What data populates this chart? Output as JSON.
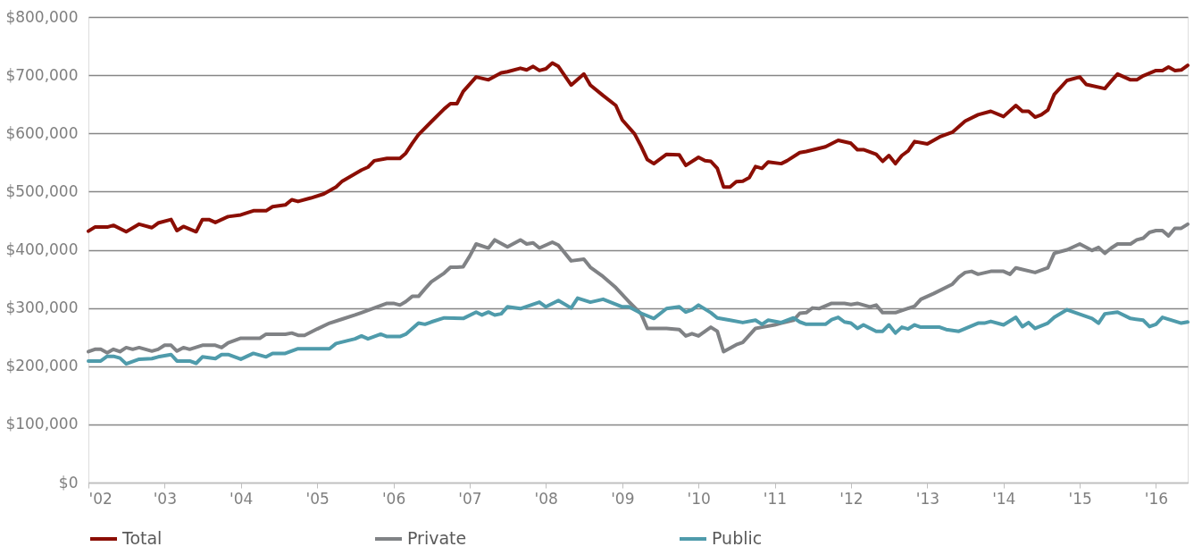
{
  "chart_data": {
    "type": "line",
    "legend": "bottom",
    "grid": "y",
    "marker": "none",
    "line_style": "solid",
    "xlim": [
      "2002-01",
      "2016-06"
    ],
    "xticks": [
      {
        "value": "2002-01",
        "label": "'02"
      },
      {
        "value": "2003-01",
        "label": "'03"
      },
      {
        "value": "2004-01",
        "label": "'04"
      },
      {
        "value": "2005-01",
        "label": "'05"
      },
      {
        "value": "2006-01",
        "label": "'06"
      },
      {
        "value": "2007-01",
        "label": "'07"
      },
      {
        "value": "2008-01",
        "label": "'08"
      },
      {
        "value": "2009-01",
        "label": "'09"
      },
      {
        "value": "2010-01",
        "label": "'10"
      },
      {
        "value": "2011-01",
        "label": "'11"
      },
      {
        "value": "2012-01",
        "label": "'12"
      },
      {
        "value": "2013-01",
        "label": "'13"
      },
      {
        "value": "2014-01",
        "label": "'14"
      },
      {
        "value": "2015-01",
        "label": "'15"
      },
      {
        "value": "2016-01",
        "label": "'16"
      }
    ],
    "ylim": [
      0,
      800000
    ],
    "yticks": [
      {
        "value": 0,
        "label": "$0"
      },
      {
        "value": 100000,
        "label": "$100,000"
      },
      {
        "value": 200000,
        "label": "$200,000"
      },
      {
        "value": 300000,
        "label": "$300,000"
      },
      {
        "value": 400000,
        "label": "$400,000"
      },
      {
        "value": 500000,
        "label": "$500,000"
      },
      {
        "value": 600000,
        "label": "$600,000"
      },
      {
        "value": 700000,
        "label": "$700,000"
      },
      {
        "value": 800000,
        "label": "$800,000"
      }
    ],
    "series": [
      {
        "name": "Total",
        "color": "#8b0e04",
        "x": [
          "2002-01",
          "2002-02",
          "2002-04",
          "2002-05",
          "2002-07",
          "2002-09",
          "2002-11",
          "2002-12",
          "2003-02",
          "2003-03",
          "2003-04",
          "2003-06",
          "2003-07",
          "2003-08",
          "2003-09",
          "2003-11",
          "2004-01",
          "2004-03",
          "2004-05",
          "2004-06",
          "2004-08",
          "2004-09",
          "2004-10",
          "2004-12",
          "2005-02",
          "2005-04",
          "2005-05",
          "2005-08",
          "2005-09",
          "2005-10",
          "2005-12",
          "2006-02",
          "2006-03",
          "2006-04",
          "2006-05",
          "2006-07",
          "2006-09",
          "2006-10",
          "2006-11",
          "2006-12",
          "2007-02",
          "2007-04",
          "2007-06",
          "2007-07",
          "2007-09",
          "2007-10",
          "2007-11",
          "2007-12",
          "2008-01",
          "2008-02",
          "2008-03",
          "2008-05",
          "2008-07",
          "2008-08",
          "2008-10",
          "2008-12",
          "2009-01",
          "2009-03",
          "2009-04",
          "2009-05",
          "2009-06",
          "2009-08",
          "2009-10",
          "2009-11",
          "2010-01",
          "2010-02",
          "2010-03",
          "2010-04",
          "2010-05",
          "2010-06",
          "2010-07",
          "2010-08",
          "2010-09",
          "2010-10",
          "2010-11",
          "2010-12",
          "2011-02",
          "2011-03",
          "2011-05",
          "2011-06",
          "2011-09",
          "2011-11",
          "2012-01",
          "2012-02",
          "2012-03",
          "2012-05",
          "2012-06",
          "2012-07",
          "2012-08",
          "2012-09",
          "2012-10",
          "2012-11",
          "2013-01",
          "2013-03",
          "2013-05",
          "2013-07",
          "2013-09",
          "2013-11",
          "2014-01",
          "2014-03",
          "2014-04",
          "2014-05",
          "2014-06",
          "2014-07",
          "2014-08",
          "2014-09",
          "2014-11",
          "2015-01",
          "2015-02",
          "2015-05",
          "2015-06",
          "2015-07",
          "2015-09",
          "2015-10",
          "2015-11",
          "2016-01",
          "2016-02",
          "2016-03",
          "2016-04",
          "2016-05",
          "2016-06"
        ],
        "values": [
          432000,
          439000,
          439000,
          442000,
          431000,
          444000,
          438000,
          446000,
          452000,
          433000,
          440000,
          431000,
          452000,
          452000,
          447000,
          457000,
          460000,
          467000,
          467000,
          474000,
          477000,
          486000,
          483000,
          489000,
          496000,
          508000,
          518000,
          537000,
          542000,
          553000,
          557000,
          557000,
          566000,
          583000,
          598000,
          620000,
          642000,
          651000,
          651000,
          672000,
          697000,
          692000,
          704000,
          706000,
          712000,
          709000,
          715000,
          708000,
          711000,
          721000,
          715000,
          683000,
          702000,
          683000,
          665000,
          648000,
          623000,
          599000,
          578000,
          555000,
          548000,
          564000,
          563000,
          545000,
          559000,
          553000,
          552000,
          540000,
          508000,
          508000,
          517000,
          518000,
          524000,
          543000,
          540000,
          551000,
          548000,
          553000,
          567000,
          569000,
          577000,
          588000,
          583000,
          572000,
          572000,
          564000,
          552000,
          562000,
          548000,
          562000,
          570000,
          586000,
          582000,
          594000,
          602000,
          621000,
          632000,
          638000,
          629000,
          648000,
          638000,
          638000,
          628000,
          632000,
          640000,
          667000,
          691000,
          697000,
          684000,
          677000,
          690000,
          702000,
          692000,
          692000,
          699000,
          708000,
          708000,
          714000,
          708000,
          709000,
          717000
        ]
      },
      {
        "name": "Private",
        "color": "#808285",
        "x": [
          "2002-01",
          "2002-02",
          "2002-03",
          "2002-04",
          "2002-05",
          "2002-06",
          "2002-07",
          "2002-08",
          "2002-09",
          "2002-11",
          "2002-12",
          "2003-01",
          "2003-02",
          "2003-03",
          "2003-04",
          "2003-05",
          "2003-07",
          "2003-09",
          "2003-10",
          "2003-11",
          "2004-01",
          "2004-04",
          "2004-05",
          "2004-08",
          "2004-09",
          "2004-10",
          "2004-11",
          "2005-01",
          "2005-03",
          "2005-05",
          "2005-07",
          "2005-08",
          "2005-10",
          "2005-12",
          "2006-01",
          "2006-02",
          "2006-03",
          "2006-04",
          "2006-05",
          "2006-06",
          "2006-07",
          "2006-09",
          "2006-10",
          "2006-11",
          "2006-12",
          "2007-01",
          "2007-02",
          "2007-04",
          "2007-05",
          "2007-07",
          "2007-09",
          "2007-10",
          "2007-11",
          "2007-12",
          "2008-02",
          "2008-03",
          "2008-05",
          "2008-07",
          "2008-08",
          "2008-10",
          "2008-12",
          "2009-02",
          "2009-04",
          "2009-05",
          "2009-06",
          "2009-08",
          "2009-10",
          "2009-11",
          "2009-12",
          "2010-01",
          "2010-03",
          "2010-04",
          "2010-05",
          "2010-07",
          "2010-08",
          "2010-10",
          "2010-11",
          "2011-01",
          "2011-02",
          "2011-04",
          "2011-05",
          "2011-06",
          "2011-07",
          "2011-08",
          "2011-10",
          "2011-12",
          "2012-01",
          "2012-02",
          "2012-04",
          "2012-05",
          "2012-06",
          "2012-08",
          "2012-11",
          "2012-12",
          "2013-02",
          "2013-05",
          "2013-06",
          "2013-07",
          "2013-08",
          "2013-09",
          "2013-11",
          "2014-01",
          "2014-02",
          "2014-03",
          "2014-06",
          "2014-08",
          "2014-09",
          "2014-11",
          "2015-01",
          "2015-03",
          "2015-04",
          "2015-05",
          "2015-06",
          "2015-07",
          "2015-09",
          "2015-10",
          "2015-11",
          "2015-12",
          "2016-01",
          "2016-02",
          "2016-03",
          "2016-04",
          "2016-05",
          "2016-06"
        ],
        "values": [
          225000,
          229000,
          229000,
          223000,
          229000,
          225000,
          232000,
          229000,
          232000,
          226000,
          229000,
          236000,
          236000,
          226000,
          232000,
          229000,
          236000,
          236000,
          232000,
          240000,
          248000,
          248000,
          255000,
          255000,
          257000,
          253000,
          253000,
          264000,
          274000,
          281000,
          288000,
          292000,
          300000,
          308000,
          308000,
          305000,
          311000,
          320000,
          320000,
          333000,
          345000,
          360000,
          370000,
          370000,
          371000,
          389000,
          410000,
          403000,
          417000,
          405000,
          417000,
          410000,
          412000,
          403000,
          413000,
          408000,
          381000,
          384000,
          370000,
          354000,
          335000,
          311000,
          290000,
          265000,
          265000,
          265000,
          263000,
          252000,
          256000,
          252000,
          267000,
          260000,
          225000,
          237000,
          241000,
          265000,
          267000,
          271000,
          274000,
          279000,
          291000,
          292000,
          300000,
          299000,
          308000,
          308000,
          306000,
          308000,
          302000,
          305000,
          292000,
          292000,
          303000,
          315000,
          325000,
          341000,
          353000,
          361000,
          363000,
          358000,
          363000,
          363000,
          358000,
          369000,
          361000,
          369000,
          394000,
          400000,
          410000,
          399000,
          404000,
          394000,
          403000,
          410000,
          410000,
          417000,
          420000,
          430000,
          433000,
          433000,
          424000,
          437000,
          437000,
          444000
        ]
      },
      {
        "name": "Public",
        "color": "#4f9bab",
        "x": [
          "2002-01",
          "2002-03",
          "2002-04",
          "2002-05",
          "2002-06",
          "2002-07",
          "2002-09",
          "2002-11",
          "2002-12",
          "2003-02",
          "2003-03",
          "2003-05",
          "2003-06",
          "2003-07",
          "2003-09",
          "2003-10",
          "2003-11",
          "2004-01",
          "2004-03",
          "2004-05",
          "2004-06",
          "2004-08",
          "2004-10",
          "2005-03",
          "2005-04",
          "2005-07",
          "2005-08",
          "2005-09",
          "2005-11",
          "2005-12",
          "2006-02",
          "2006-03",
          "2006-05",
          "2006-06",
          "2006-07",
          "2006-09",
          "2006-12",
          "2007-02",
          "2007-03",
          "2007-04",
          "2007-05",
          "2007-06",
          "2007-07",
          "2007-09",
          "2007-12",
          "2008-01",
          "2008-03",
          "2008-05",
          "2008-06",
          "2008-08",
          "2008-10",
          "2009-01",
          "2009-02",
          "2009-04",
          "2009-06",
          "2009-08",
          "2009-10",
          "2009-11",
          "2009-12",
          "2010-01",
          "2010-03",
          "2010-04",
          "2010-06",
          "2010-08",
          "2010-10",
          "2010-11",
          "2010-12",
          "2011-02",
          "2011-04",
          "2011-05",
          "2011-06",
          "2011-09",
          "2011-10",
          "2011-11",
          "2011-12",
          "2012-01",
          "2012-02",
          "2012-03",
          "2012-05",
          "2012-06",
          "2012-07",
          "2012-08",
          "2012-09",
          "2012-10",
          "2012-11",
          "2012-12",
          "2013-03",
          "2013-04",
          "2013-06",
          "2013-09",
          "2013-10",
          "2013-11",
          "2014-01",
          "2014-03",
          "2014-04",
          "2014-05",
          "2014-06",
          "2014-08",
          "2014-09",
          "2014-11",
          "2015-03",
          "2015-04",
          "2015-05",
          "2015-07",
          "2015-09",
          "2015-11",
          "2015-12",
          "2016-01",
          "2016-02",
          "2016-05",
          "2016-06"
        ],
        "values": [
          209000,
          209000,
          217000,
          217000,
          214000,
          204000,
          212000,
          213000,
          216000,
          220000,
          209000,
          209000,
          205000,
          216000,
          213000,
          220000,
          220000,
          212000,
          222000,
          216000,
          222000,
          222000,
          230000,
          230000,
          239000,
          247000,
          252000,
          247000,
          255000,
          251000,
          251000,
          255000,
          274000,
          272000,
          276000,
          283000,
          282000,
          293000,
          288000,
          293000,
          288000,
          290000,
          302000,
          299000,
          310000,
          302000,
          313000,
          300000,
          317000,
          310000,
          315000,
          302000,
          302000,
          291000,
          282000,
          299000,
          302000,
          293000,
          297000,
          305000,
          292000,
          283000,
          279000,
          275000,
          279000,
          272000,
          279000,
          275000,
          283000,
          276000,
          272000,
          272000,
          280000,
          284000,
          276000,
          274000,
          265000,
          271000,
          260000,
          260000,
          271000,
          257000,
          267000,
          264000,
          271000,
          267000,
          267000,
          263000,
          260000,
          274000,
          274000,
          277000,
          271000,
          284000,
          268000,
          275000,
          265000,
          274000,
          284000,
          297000,
          282000,
          274000,
          290000,
          293000,
          282000,
          279000,
          268000,
          272000,
          284000,
          274000,
          276000
        ]
      }
    ]
  }
}
